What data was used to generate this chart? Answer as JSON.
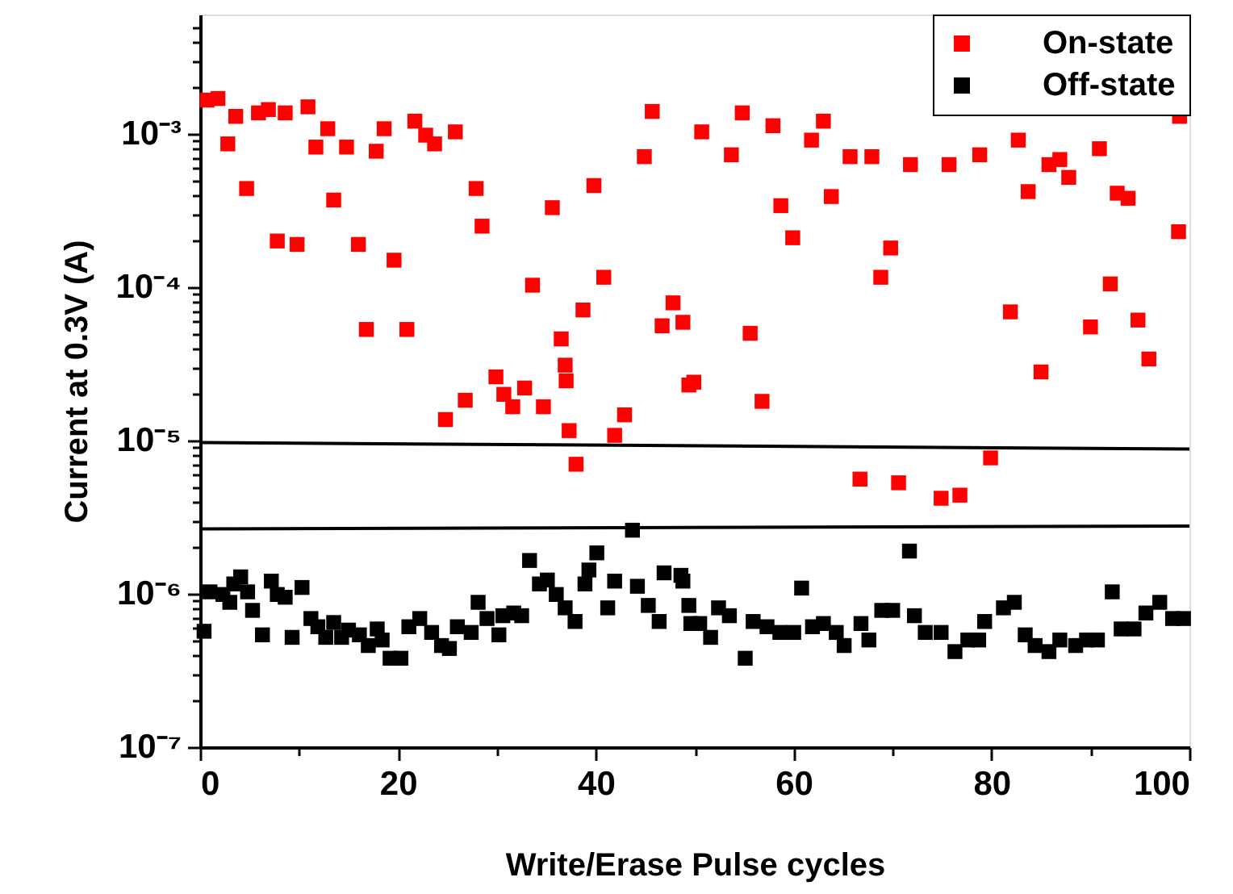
{
  "chart_data": {
    "type": "scatter",
    "xlabel": "Write/Erase Pulse cycles",
    "ylabel": "Current at 0.3V (A)",
    "xlim": [
      0,
      100
    ],
    "ylim": [
      1e-07,
      0.006
    ],
    "log": true,
    "grid": false,
    "legend": "top right",
    "marker": "square",
    "xticks": [
      0,
      {
        "value": 10,
        "label": null
      },
      20,
      {
        "value": 30,
        "label": null
      },
      40,
      {
        "value": 50,
        "label": null
      },
      60,
      {
        "value": 70,
        "label": null
      },
      80,
      {
        "value": 90,
        "label": null
      },
      100
    ],
    "yticks": [
      {
        "value": 1e-07,
        "label": "10⁻⁷"
      },
      {
        "value": 2e-07,
        "label": null
      },
      {
        "value": 3e-07,
        "label": null
      },
      {
        "value": 4e-07,
        "label": null
      },
      {
        "value": 5e-07,
        "label": null
      },
      {
        "value": 6e-07,
        "label": null
      },
      {
        "value": 7e-07,
        "label": null
      },
      {
        "value": 8e-07,
        "label": null
      },
      {
        "value": 9e-07,
        "label": null
      },
      {
        "value": 1e-06,
        "label": "10⁻⁶"
      },
      {
        "value": 2e-06,
        "label": null
      },
      {
        "value": 3e-06,
        "label": null
      },
      {
        "value": 4e-06,
        "label": null
      },
      {
        "value": 5e-06,
        "label": null
      },
      {
        "value": 6e-06,
        "label": null
      },
      {
        "value": 7e-06,
        "label": null
      },
      {
        "value": 8e-06,
        "label": null
      },
      {
        "value": 9e-06,
        "label": null
      },
      {
        "value": 1e-05,
        "label": "10⁻⁵"
      },
      {
        "value": 2e-05,
        "label": null
      },
      {
        "value": 3e-05,
        "label": null
      },
      {
        "value": 4e-05,
        "label": null
      },
      {
        "value": 5e-05,
        "label": null
      },
      {
        "value": 6e-05,
        "label": null
      },
      {
        "value": 7e-05,
        "label": null
      },
      {
        "value": 8e-05,
        "label": null
      },
      {
        "value": 9e-05,
        "label": null
      },
      {
        "value": 0.0001,
        "label": "10⁻⁴"
      },
      {
        "value": 0.0002,
        "label": null
      },
      {
        "value": 0.0003,
        "label": null
      },
      {
        "value": 0.0004,
        "label": null
      },
      {
        "value": 0.0005,
        "label": null
      },
      {
        "value": 0.0006,
        "label": null
      },
      {
        "value": 0.0007,
        "label": null
      },
      {
        "value": 0.0008,
        "label": null
      },
      {
        "value": 0.0009,
        "label": null
      },
      {
        "value": 0.001,
        "label": "10⁻³"
      },
      {
        "value": 0.002,
        "label": null
      },
      {
        "value": 0.003,
        "label": null
      },
      {
        "value": 0.004,
        "label": null
      },
      {
        "value": 0.005,
        "label": null
      }
    ],
    "series": [
      {
        "name": "On-state",
        "color": "#ff0000",
        "x": [
          0.7,
          1.8,
          2.8,
          3.6,
          4.7,
          5.9,
          6.9,
          7.8,
          8.6,
          9.8,
          10.9,
          11.7,
          12.9,
          13.5,
          14.8,
          16.0,
          16.8,
          17.8,
          18.6,
          19.6,
          20.9,
          21.7,
          22.8,
          23.7,
          24.8,
          25.8,
          26.8,
          27.9,
          28.5,
          29.9,
          30.7,
          31.6,
          32.8,
          33.6,
          34.7,
          35.6,
          36.5,
          36.9,
          37.0,
          37.3,
          38.0,
          38.7,
          39.8,
          40.8,
          41.9,
          42.9,
          44.9,
          45.7,
          46.7,
          47.8,
          48.8,
          49.4,
          49.9,
          50.7,
          53.7,
          54.8,
          55.6,
          56.8,
          57.9,
          58.7,
          59.9,
          61.8,
          63.0,
          63.8,
          65.7,
          66.7,
          67.9,
          68.8,
          69.8,
          70.6,
          71.8,
          74.9,
          75.7,
          76.8,
          78.8,
          79.9,
          81.9,
          82.7,
          83.7,
          85.0,
          85.8,
          86.9,
          87.8,
          90.0,
          90.9,
          92.0,
          92.7,
          93.8,
          94.8,
          95.9,
          98.9,
          99.0
        ],
        "values": [
          0.00166,
          0.0017,
          0.00086,
          0.0013,
          0.00044,
          0.00137,
          0.00144,
          0.0002,
          0.00137,
          0.00019,
          0.0015,
          0.00082,
          0.00108,
          0.00037,
          0.00082,
          0.00019,
          5.3e-05,
          0.00077,
          0.00108,
          0.00015,
          5.3e-05,
          0.00121,
          0.00098,
          0.00086,
          1.37e-05,
          0.00103,
          1.83e-05,
          0.00044,
          0.00025,
          2.6e-05,
          2e-05,
          1.66e-05,
          2.2e-05,
          0.000103,
          1.66e-05,
          0.00033,
          4.6e-05,
          3.1e-05,
          2.45e-05,
          1.16e-05,
          7e-06,
          7.1e-05,
          0.00046,
          0.000116,
          1.08e-05,
          1.47e-05,
          0.00071,
          0.0014,
          5.6e-05,
          7.9e-05,
          5.9e-05,
          2.3e-05,
          2.4e-05,
          0.00103,
          0.00073,
          0.00137,
          5e-05,
          1.8e-05,
          0.00113,
          0.00034,
          0.00021,
          0.00091,
          0.00121,
          0.00039,
          0.00071,
          5.6e-06,
          0.00071,
          0.000116,
          0.00018,
          5.3e-06,
          0.00063,
          4.2e-06,
          0.00063,
          4.4e-06,
          0.00073,
          7.7e-06,
          6.9e-05,
          0.00091,
          0.00042,
          2.8e-05,
          0.00063,
          0.00068,
          0.00052,
          5.5e-05,
          0.0008,
          0.000105,
          0.00041,
          0.00038,
          6.1e-05,
          3.4e-05,
          0.00023,
          0.0013
        ]
      },
      {
        "name": "Off-state",
        "color": "#000000",
        "x": [
          0.4,
          1.0,
          2.3,
          3.0,
          3.4,
          4.1,
          4.8,
          5.3,
          6.3,
          7.2,
          7.8,
          8.6,
          9.3,
          10.3,
          11.2,
          11.9,
          12.7,
          13.5,
          14.3,
          15.0,
          16.1,
          17.0,
          17.9,
          18.4,
          19.2,
          20.3,
          21.1,
          22.2,
          23.4,
          24.4,
          25.2,
          26.0,
          27.4,
          28.1,
          29.0,
          30.2,
          30.6,
          31.7,
          32.5,
          33.3,
          34.3,
          35.1,
          36.0,
          36.9,
          37.9,
          38.9,
          39.3,
          40.1,
          41.2,
          41.9,
          43.7,
          44.2,
          45.3,
          46.4,
          46.9,
          48.6,
          48.8,
          49.4,
          49.6,
          50.5,
          51.6,
          52.4,
          53.5,
          55.1,
          55.9,
          57.3,
          58.6,
          60.0,
          60.8,
          61.9,
          63.0,
          64.3,
          65.1,
          66.8,
          67.6,
          68.9,
          70.0,
          71.7,
          72.2,
          73.3,
          74.9,
          76.3,
          77.6,
          78.7,
          79.3,
          81.2,
          82.3,
          83.4,
          84.4,
          85.8,
          86.9,
          88.5,
          89.6,
          90.7,
          92.2,
          93.1,
          94.4,
          95.6,
          97.0,
          98.3,
          99.4
        ],
        "values": [
          5.7e-07,
          1.03e-06,
          9.9e-07,
          8.8e-07,
          1.16e-06,
          1.29e-06,
          1.03e-06,
          7.8e-07,
          5.4e-07,
          1.21e-06,
          9.9e-07,
          9.5e-07,
          5.2e-07,
          1.1e-06,
          6.9e-07,
          6.1e-07,
          5.2e-07,
          6.5e-07,
          5.2e-07,
          5.8e-07,
          5.4e-07,
          4.6e-07,
          5.9e-07,
          5e-07,
          3.8e-07,
          3.8e-07,
          6.1e-07,
          6.9e-07,
          5.6e-07,
          4.6e-07,
          4.4e-07,
          6.1e-07,
          5.6e-07,
          8.8e-07,
          6.9e-07,
          5.4e-07,
          7.2e-07,
          7.5e-07,
          7.2e-07,
          1.65e-06,
          1.16e-06,
          1.23e-06,
          9.9e-07,
          8.1e-07,
          6.6e-07,
          1.16e-06,
          1.43e-06,
          1.85e-06,
          8.1e-07,
          1.21e-06,
          2.6e-06,
          1.12e-06,
          8.4e-07,
          6.6e-07,
          1.37e-06,
          1.32e-06,
          1.21e-06,
          8.4e-07,
          6.4e-07,
          6.4e-07,
          5.2e-07,
          8.1e-07,
          7.2e-07,
          3.8e-07,
          6.6e-07,
          6.1e-07,
          5.6e-07,
          5.6e-07,
          1.09e-06,
          6.1e-07,
          6.4e-07,
          5.6e-07,
          4.6e-07,
          6.4e-07,
          5e-07,
          7.8e-07,
          7.8e-07,
          1.9e-06,
          7.2e-07,
          5.6e-07,
          5.6e-07,
          4.2e-07,
          5e-07,
          5e-07,
          6.6e-07,
          8.1e-07,
          8.8e-07,
          5.4e-07,
          4.6e-07,
          4.2e-07,
          5e-07,
          4.6e-07,
          5e-07,
          5e-07,
          1.03e-06,
          5.9e-07,
          5.9e-07,
          7.5e-07,
          8.8e-07,
          6.9e-07,
          6.9e-07
        ]
      },
      {
        "type": "line",
        "color": "#000000",
        "line_style": "solid",
        "marker": "none",
        "x": [
          0,
          100
        ],
        "values": [
          9.7e-06,
          8.8e-06
        ]
      },
      {
        "type": "line",
        "color": "#000000",
        "line_style": "solid",
        "marker": "none",
        "x": [
          0,
          100
        ],
        "values": [
          2.65e-06,
          2.77e-06
        ]
      }
    ]
  }
}
